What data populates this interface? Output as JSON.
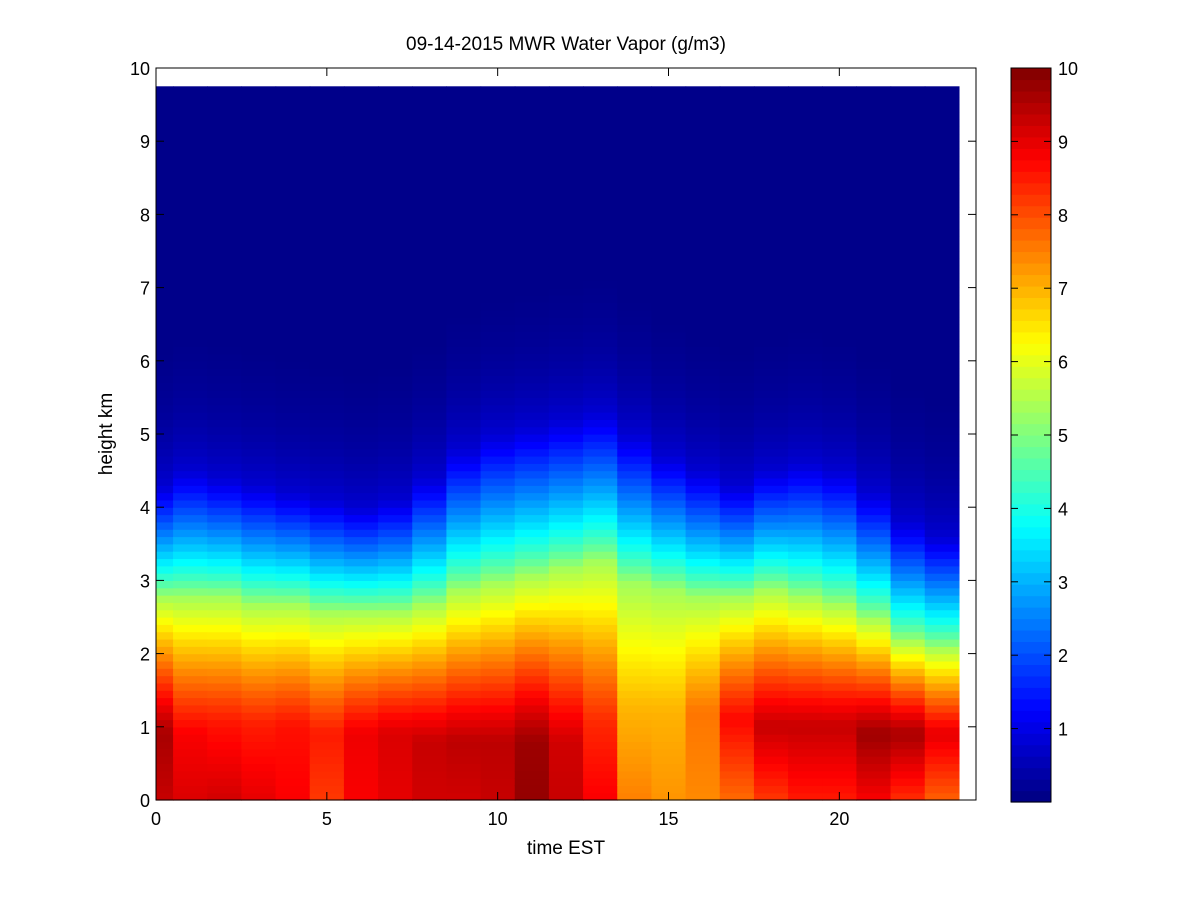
{
  "chart_data": {
    "type": "heatmap",
    "title": "09-14-2015 MWR Water Vapor (g/m3)",
    "xlabel": "time EST",
    "ylabel": "height km",
    "xlim": [
      0,
      24
    ],
    "ylim": [
      0,
      10
    ],
    "x_ticks": [
      0,
      5,
      10,
      15,
      20
    ],
    "y_ticks": [
      0,
      1,
      2,
      3,
      4,
      5,
      6,
      7,
      8,
      9,
      10
    ],
    "colorbar": {
      "colormap": "jet",
      "range": [
        0,
        10
      ],
      "ticks": [
        1,
        2,
        3,
        4,
        5,
        6,
        7,
        8,
        9,
        10
      ]
    },
    "time_bins": [
      0,
      0.5,
      1.5,
      2.5,
      3.5,
      4.5,
      5.5,
      6.5,
      7.5,
      8.5,
      9.5,
      10.5,
      11.5,
      12.5,
      13.5,
      14.5,
      15.5,
      16.5,
      17.5,
      18.5,
      19.5,
      20.5,
      21.5,
      22.5,
      23.5
    ],
    "height_top_km": 9.75,
    "profiles": [
      {
        "time": 0.0,
        "surface": 9.3,
        "peak": 9.6,
        "peak_height": 0.9,
        "transition": 2.8,
        "moist_top": 4.3
      },
      {
        "time": 1.0,
        "surface": 9.1,
        "peak": 8.8,
        "peak_height": 0.9,
        "transition": 2.8,
        "moist_top": 4.5
      },
      {
        "time": 2.0,
        "surface": 9.2,
        "peak": 8.6,
        "peak_height": 1.0,
        "transition": 2.8,
        "moist_top": 4.4
      },
      {
        "time": 3.0,
        "surface": 9.0,
        "peak": 8.5,
        "peak_height": 1.0,
        "transition": 2.7,
        "moist_top": 4.3
      },
      {
        "time": 4.0,
        "surface": 8.8,
        "peak": 8.6,
        "peak_height": 1.0,
        "transition": 2.7,
        "moist_top": 4.2
      },
      {
        "time": 5.0,
        "surface": 8.2,
        "peak": 8.5,
        "peak_height": 0.9,
        "transition": 2.6,
        "moist_top": 4.1
      },
      {
        "time": 6.0,
        "surface": 8.8,
        "peak": 8.9,
        "peak_height": 0.9,
        "transition": 2.6,
        "moist_top": 4.0
      },
      {
        "time": 7.0,
        "surface": 9.0,
        "peak": 9.1,
        "peak_height": 0.9,
        "transition": 2.6,
        "moist_top": 4.1
      },
      {
        "time": 8.0,
        "surface": 9.2,
        "peak": 9.3,
        "peak_height": 0.8,
        "transition": 2.7,
        "moist_top": 4.4
      },
      {
        "time": 9.0,
        "surface": 9.2,
        "peak": 9.4,
        "peak_height": 0.8,
        "transition": 2.9,
        "moist_top": 4.8
      },
      {
        "time": 10.0,
        "surface": 9.3,
        "peak": 9.4,
        "peak_height": 0.8,
        "transition": 3.0,
        "moist_top": 5.0
      },
      {
        "time": 11.0,
        "surface": 9.8,
        "peak": 9.7,
        "peak_height": 0.8,
        "transition": 3.1,
        "moist_top": 5.1
      },
      {
        "time": 12.0,
        "surface": 9.3,
        "peak": 9.2,
        "peak_height": 0.8,
        "transition": 3.2,
        "moist_top": 5.2
      },
      {
        "time": 13.0,
        "surface": 8.8,
        "peak": 8.4,
        "peak_height": 1.0,
        "transition": 3.3,
        "moist_top": 5.3
      },
      {
        "time": 14.0,
        "surface": 7.5,
        "peak": 7.0,
        "peak_height": 1.2,
        "transition": 3.0,
        "moist_top": 5.0
      },
      {
        "time": 15.0,
        "surface": 7.3,
        "peak": 7.0,
        "peak_height": 1.2,
        "transition": 2.9,
        "moist_top": 4.7
      },
      {
        "time": 16.0,
        "surface": 7.4,
        "peak": 7.6,
        "peak_height": 1.2,
        "transition": 2.8,
        "moist_top": 4.5
      },
      {
        "time": 17.0,
        "surface": 7.7,
        "peak": 8.7,
        "peak_height": 1.1,
        "transition": 2.8,
        "moist_top": 4.3
      },
      {
        "time": 18.0,
        "surface": 8.2,
        "peak": 9.3,
        "peak_height": 1.0,
        "transition": 2.9,
        "moist_top": 4.5
      },
      {
        "time": 19.0,
        "surface": 8.5,
        "peak": 9.3,
        "peak_height": 1.0,
        "transition": 2.8,
        "moist_top": 4.6
      },
      {
        "time": 20.0,
        "surface": 8.5,
        "peak": 9.3,
        "peak_height": 1.0,
        "transition": 2.7,
        "moist_top": 4.5
      },
      {
        "time": 21.0,
        "surface": 8.8,
        "peak": 9.7,
        "peak_height": 0.9,
        "transition": 2.5,
        "moist_top": 4.2
      },
      {
        "time": 22.0,
        "surface": 8.3,
        "peak": 9.6,
        "peak_height": 0.9,
        "transition": 2.2,
        "moist_top": 3.8
      },
      {
        "time": 23.0,
        "surface": 7.8,
        "peak": 9.0,
        "peak_height": 0.9,
        "transition": 2.1,
        "moist_top": 3.6
      }
    ]
  }
}
